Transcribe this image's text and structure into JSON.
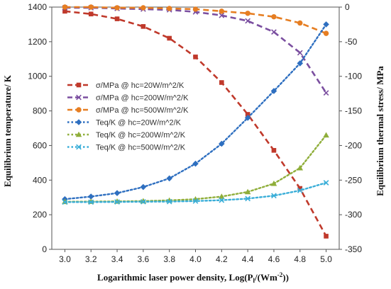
{
  "chart_data": {
    "type": "line",
    "xlabel": "Logarithmic laser power density, Log(P",
    "xlabel_sub": "l",
    "xlabel_end": "/(Wm",
    "xlabel_sup": "-2",
    "xlabel_close": "))",
    "ylabel_left": "Equilibrium temperature/ K",
    "ylabel_right": "Equilibrium thermal stress/ MPa",
    "x": [
      3.0,
      3.2,
      3.4,
      3.6,
      3.8,
      4.0,
      4.2,
      4.4,
      4.6,
      4.8,
      5.0
    ],
    "x_ticks": [
      "3.0",
      "3.2",
      "3.4",
      "3.6",
      "3.8",
      "4.0",
      "4.2",
      "4.4",
      "4.6",
      "4.8",
      "5.0"
    ],
    "xlim": [
      2.9,
      5.1
    ],
    "ylim_left": [
      0,
      1400
    ],
    "yticks_left": [
      0,
      200,
      400,
      600,
      800,
      1000,
      1200,
      1400
    ],
    "ylim_right": [
      -350,
      0
    ],
    "yticks_right": [
      0,
      -50,
      -100,
      -150,
      -200,
      -250,
      -300,
      -350
    ],
    "grid": false,
    "legend_position": "center-left",
    "series": [
      {
        "name": "σ/MPa @ hc=20W/m^2/K",
        "axis": "right",
        "marker": "square",
        "style": "dashed",
        "color": "#c0392b",
        "values": [
          -6,
          -10,
          -17,
          -28,
          -45,
          -72,
          -109,
          -155,
          -207,
          -262,
          -331
        ]
      },
      {
        "name": "σ/MPa @ hc=200W/m^2/K",
        "axis": "right",
        "marker": "x",
        "style": "dashed",
        "color": "#7b4fa0",
        "values": [
          -1,
          -1,
          -2,
          -3,
          -4,
          -7,
          -12,
          -20,
          -36,
          -66,
          -124
        ]
      },
      {
        "name": "σ/MPa @ hc=500W/m^2/K",
        "axis": "right",
        "marker": "circle",
        "style": "dashed",
        "color": "#e67e22",
        "values": [
          0,
          0,
          -1,
          -1,
          -2,
          -3,
          -6,
          -9,
          -14,
          -23,
          -38
        ]
      },
      {
        "name": "Teq/K @ hc=20W/m^2/K",
        "axis": "left",
        "marker": "diamond",
        "style": "dotted",
        "color": "#2e6fc0",
        "values": [
          290,
          305,
          325,
          360,
          410,
          495,
          610,
          760,
          915,
          1075,
          1300
        ]
      },
      {
        "name": "Teq/K @ hc=200W/m^2/K",
        "axis": "left",
        "marker": "triangle",
        "style": "dotted",
        "color": "#8fae3a",
        "values": [
          275,
          276,
          277,
          279,
          283,
          290,
          305,
          332,
          380,
          470,
          660
        ]
      },
      {
        "name": "Teq/K @ hc=500W/m^2/K",
        "axis": "left",
        "marker": "x",
        "style": "dotted",
        "color": "#3aaed8",
        "values": [
          273,
          273,
          274,
          275,
          276,
          279,
          284,
          293,
          310,
          340,
          385
        ]
      }
    ]
  }
}
